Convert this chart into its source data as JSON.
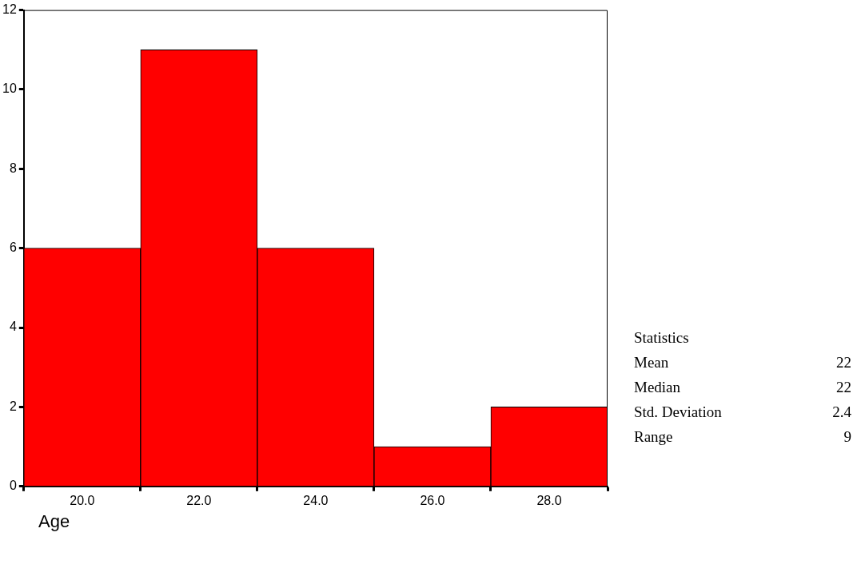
{
  "chart_data": {
    "type": "histogram",
    "xlabel": "Age",
    "bins": [
      19,
      21,
      23,
      25,
      27,
      29
    ],
    "values": [
      6,
      11,
      6,
      1,
      2
    ],
    "color": "#ff0000",
    "xlim": [
      19,
      29
    ],
    "xticks": [
      {
        "value": 20,
        "label": "20.0"
      },
      {
        "value": 22,
        "label": "22.0"
      },
      {
        "value": 24,
        "label": "24.0"
      },
      {
        "value": 26,
        "label": "26.0"
      },
      {
        "value": 28,
        "label": "28.0"
      }
    ],
    "ylim": [
      0,
      12
    ],
    "yticks": [
      0,
      2,
      4,
      6,
      8,
      10,
      12
    ],
    "grid": false,
    "legend": false,
    "annotations": [
      "Statistics",
      "Mean 22",
      "Median 22",
      "Std. Deviation 2.4",
      "Range 9"
    ]
  }
}
